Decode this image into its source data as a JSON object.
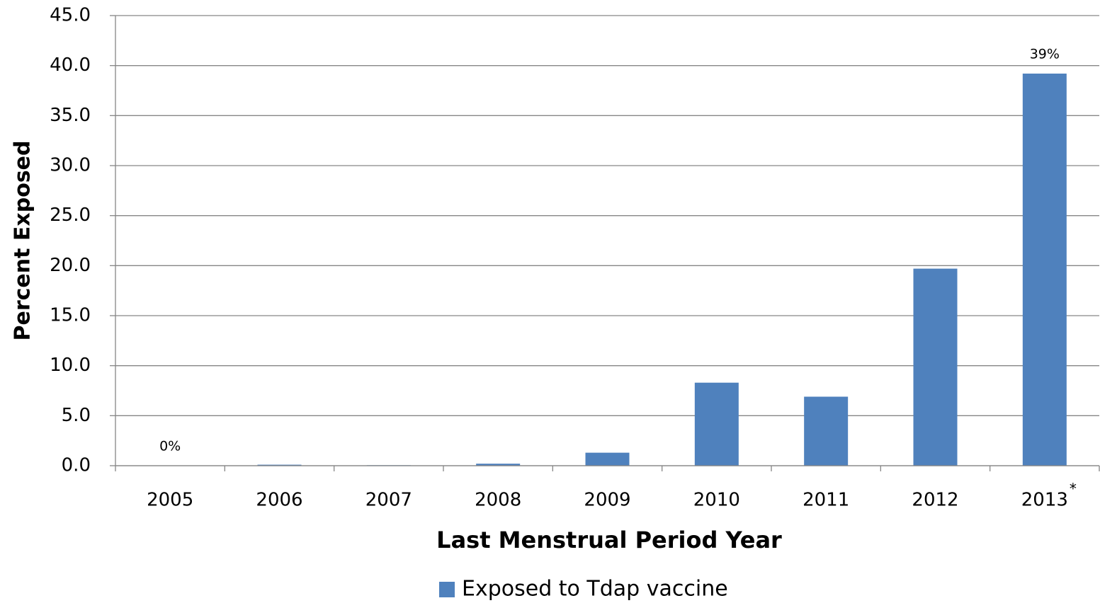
{
  "chart_data": {
    "type": "bar",
    "x_label": "Last Menstrual Period Year",
    "y_label": "Percent Exposed",
    "categories": [
      "2005",
      "2006",
      "2007",
      "2008",
      "2009",
      "2010",
      "2011",
      "2012",
      "2013"
    ],
    "annotation": "*",
    "series": [
      {
        "name": "Exposed to Tdap vaccine",
        "color": "#4f81bd",
        "values": [
          0,
          0.1,
          0.05,
          0.2,
          1.3,
          8.3,
          6.9,
          19.7,
          39.2
        ],
        "value_labels": [
          "0%",
          null,
          null,
          null,
          null,
          null,
          null,
          null,
          "39%"
        ]
      }
    ],
    "ylim": [
      0,
      45
    ],
    "yticks": [
      {
        "value": 0,
        "label": "0.0"
      },
      {
        "value": 5,
        "label": "5.0"
      },
      {
        "value": 10,
        "label": "10.0"
      },
      {
        "value": 15,
        "label": "15.0"
      },
      {
        "value": 20,
        "label": "20.0"
      },
      {
        "value": 25,
        "label": "25.0"
      },
      {
        "value": 30,
        "label": "30.0"
      },
      {
        "value": 35,
        "label": "35.0"
      },
      {
        "value": 40,
        "label": "40.0"
      },
      {
        "value": 45,
        "label": "45.0"
      }
    ],
    "grid": true,
    "legend": "bottom"
  }
}
